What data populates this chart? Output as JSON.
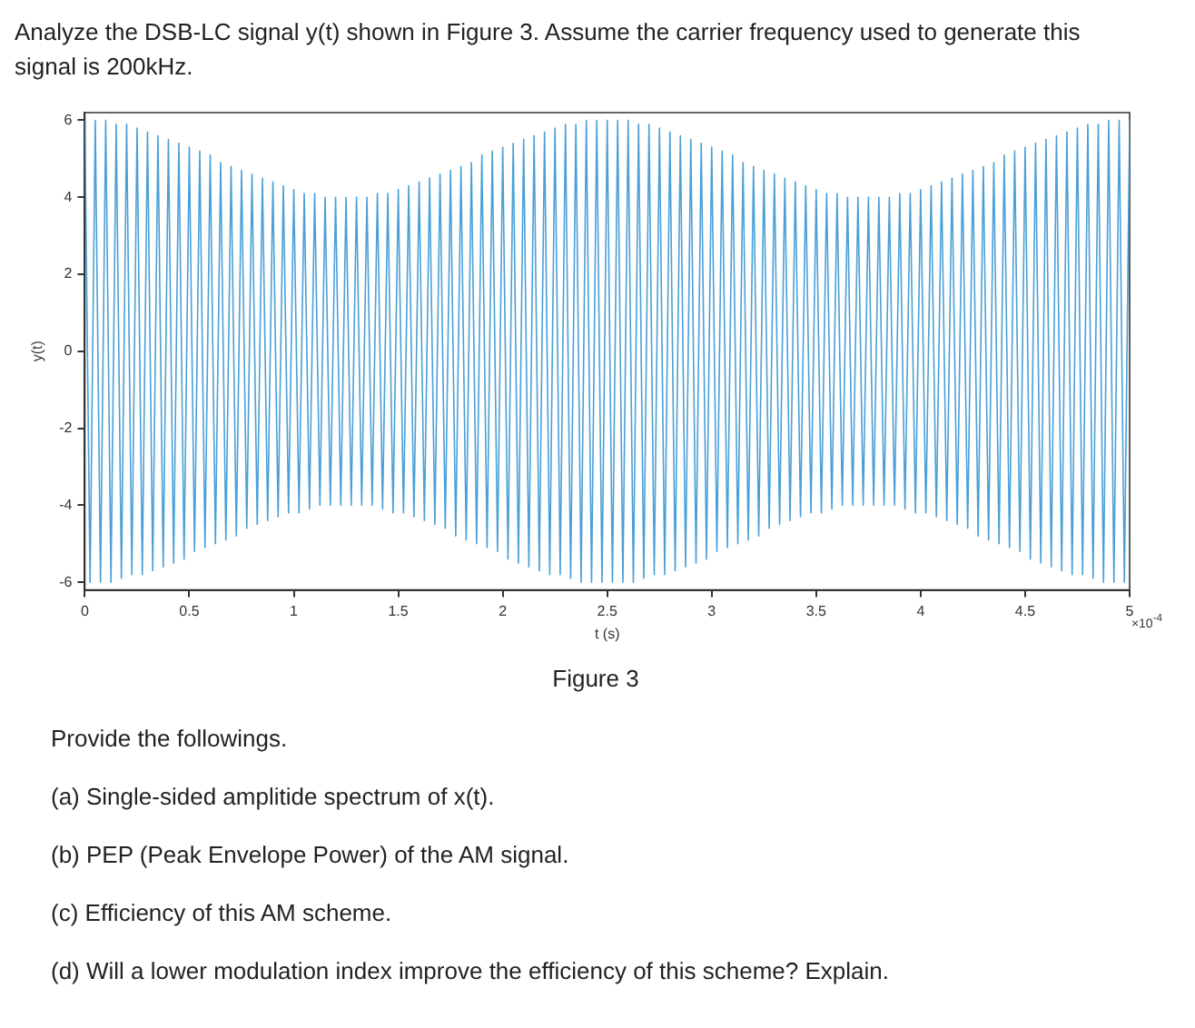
{
  "chart_data": {
    "type": "line",
    "title": "Analyze the DSB-LC signal y(t) shown in Figure 3. Assume the carrier frequency used to generate this signal is 200kHz.",
    "xlabel": "t (s)",
    "ylabel": "y(t)",
    "annotations": [
      "×10$^{-4}$",
      "Figure 3",
      "Provide the followings.",
      "(a) Single-sided amplitide spectrum of x(t).",
      "(b) PEP (Peak Envelope Power) of the AM signal.",
      "(c) Efficiency of this AM scheme.",
      "(d) Will a lower modulation index improve the efficiency of this scheme? Explain."
    ],
    "x": [
      0,
      0.025,
      0.05,
      0.075,
      0.1,
      0.125,
      0.15,
      0.175,
      0.2,
      0.225,
      0.25,
      0.275,
      0.3,
      0.325,
      0.35,
      0.375,
      0.4,
      0.425,
      0.45,
      0.475,
      0.5,
      0.525,
      0.55,
      0.575,
      0.6,
      0.625,
      0.65,
      0.675,
      0.7,
      0.725,
      0.75,
      0.775,
      0.8,
      0.825,
      0.85,
      0.875,
      0.9,
      0.925,
      0.95,
      0.975,
      1,
      1.025,
      1.05,
      1.075,
      1.1,
      1.125,
      1.15,
      1.175,
      1.2,
      1.225,
      1.25,
      1.275,
      1.3,
      1.325,
      1.35,
      1.375,
      1.4,
      1.425,
      1.45,
      1.475,
      1.5,
      1.525,
      1.55,
      1.575,
      1.6,
      1.625,
      1.65,
      1.675,
      1.7,
      1.725,
      1.75,
      1.775,
      1.8,
      1.825,
      1.85,
      1.875,
      1.9,
      1.925,
      1.95,
      1.975,
      2,
      2.025,
      2.05,
      2.075,
      2.1,
      2.125,
      2.15,
      2.175,
      2.2,
      2.225,
      2.25,
      2.275,
      2.3,
      2.325,
      2.35,
      2.375,
      2.4,
      2.425,
      2.45,
      2.475,
      2.5,
      2.525,
      2.55,
      2.575,
      2.6,
      2.625,
      2.65,
      2.675,
      2.7,
      2.725,
      2.75,
      2.775,
      2.8,
      2.825,
      2.85,
      2.875,
      2.9,
      2.925,
      2.95,
      2.975,
      3,
      3.025,
      3.05,
      3.075,
      3.1,
      3.125,
      3.15,
      3.175,
      3.2,
      3.225,
      3.25,
      3.275,
      3.3,
      3.325,
      3.35,
      3.375,
      3.4,
      3.425,
      3.45,
      3.475,
      3.5,
      3.525,
      3.55,
      3.575,
      3.6,
      3.625,
      3.65,
      3.675,
      3.7,
      3.725,
      3.75,
      3.775,
      3.8,
      3.825,
      3.85,
      3.875,
      3.9,
      3.925,
      3.95,
      3.975,
      4,
      4.025,
      4.05,
      4.075,
      4.1,
      4.125,
      4.15,
      4.175,
      4.2,
      4.225,
      4.25,
      4.275,
      4.3,
      4.325,
      4.35,
      4.375,
      4.4,
      4.425,
      4.45,
      4.475,
      4.5,
      4.525,
      4.55,
      4.575,
      4.6,
      4.625,
      4.65,
      4.675,
      4.7,
      4.725,
      4.75,
      4.775,
      4.8,
      4.825,
      4.85,
      4.875,
      4.9,
      4.925,
      4.95,
      4.975,
      5
    ],
    "series": [
      {
        "color": "#4a9fd8",
        "values": [
          6,
          -6,
          6,
          -6,
          6,
          -6,
          5.9,
          -5.9,
          5.9,
          -5.8,
          5.8,
          -5.8,
          5.7,
          -5.7,
          5.6,
          -5.6,
          5.5,
          -5.5,
          5.4,
          -5.4,
          5.3,
          -5.2,
          5.2,
          -5.1,
          5.1,
          -5,
          4.9,
          -4.9,
          4.8,
          -4.8,
          4.7,
          -4.6,
          4.6,
          -4.5,
          4.5,
          -4.4,
          4.4,
          -4.3,
          4.3,
          -4.2,
          4.2,
          -4.2,
          4.1,
          -4.1,
          4.1,
          -4,
          4,
          -4,
          4,
          -4,
          4,
          -4,
          4,
          -4,
          4,
          -4,
          4.1,
          -4.1,
          4.1,
          -4.2,
          4.2,
          -4.2,
          4.3,
          -4.3,
          4.4,
          -4.4,
          4.5,
          -4.5,
          4.6,
          -4.6,
          4.7,
          -4.8,
          4.8,
          -4.9,
          4.9,
          -5,
          5.1,
          -5.1,
          5.2,
          -5.2,
          5.3,
          -5.4,
          5.4,
          -5.5,
          5.5,
          -5.6,
          5.6,
          -5.7,
          5.7,
          -5.8,
          5.8,
          -5.8,
          5.9,
          -5.9,
          5.9,
          -6,
          6,
          -6,
          6,
          -6,
          6,
          -6,
          6,
          -6,
          6,
          -6,
          5.9,
          -5.9,
          5.9,
          -5.8,
          5.8,
          -5.8,
          5.7,
          -5.7,
          5.6,
          -5.6,
          5.5,
          -5.5,
          5.4,
          -5.4,
          5.3,
          -5.2,
          5.2,
          -5.1,
          5.1,
          -5,
          4.9,
          -4.9,
          4.8,
          -4.8,
          4.7,
          -4.6,
          4.6,
          -4.5,
          4.5,
          -4.4,
          4.4,
          -4.3,
          4.3,
          -4.2,
          4.2,
          -4.2,
          4.1,
          -4.1,
          4.1,
          -4,
          4,
          -4,
          4,
          -4,
          4,
          -4,
          4,
          -4,
          4,
          -4,
          4.1,
          -4.1,
          4.1,
          -4.2,
          4.2,
          -4.2,
          4.3,
          -4.3,
          4.4,
          -4.4,
          4.5,
          -4.5,
          4.6,
          -4.6,
          4.7,
          -4.8,
          4.8,
          -4.9,
          4.9,
          -5,
          5.1,
          -5.1,
          5.2,
          -5.2,
          5.3,
          -5.4,
          5.4,
          -5.5,
          5.5,
          -5.6,
          5.6,
          -5.7,
          5.7,
          -5.8,
          5.8,
          -5.8,
          5.9,
          -5.9,
          5.9,
          -6,
          6,
          -6,
          6,
          -6,
          6
        ]
      }
    ],
    "marker": "none",
    "xlim": [
      0,
      5
    ],
    "xticks": [
      0,
      0.5,
      1,
      1.5,
      2,
      2.5,
      3,
      3.5,
      4,
      4.5,
      5
    ],
    "ylim": [
      -6.2,
      6.2
    ],
    "yticks": [
      -6,
      -4,
      -2,
      0,
      2,
      4,
      6
    ]
  }
}
